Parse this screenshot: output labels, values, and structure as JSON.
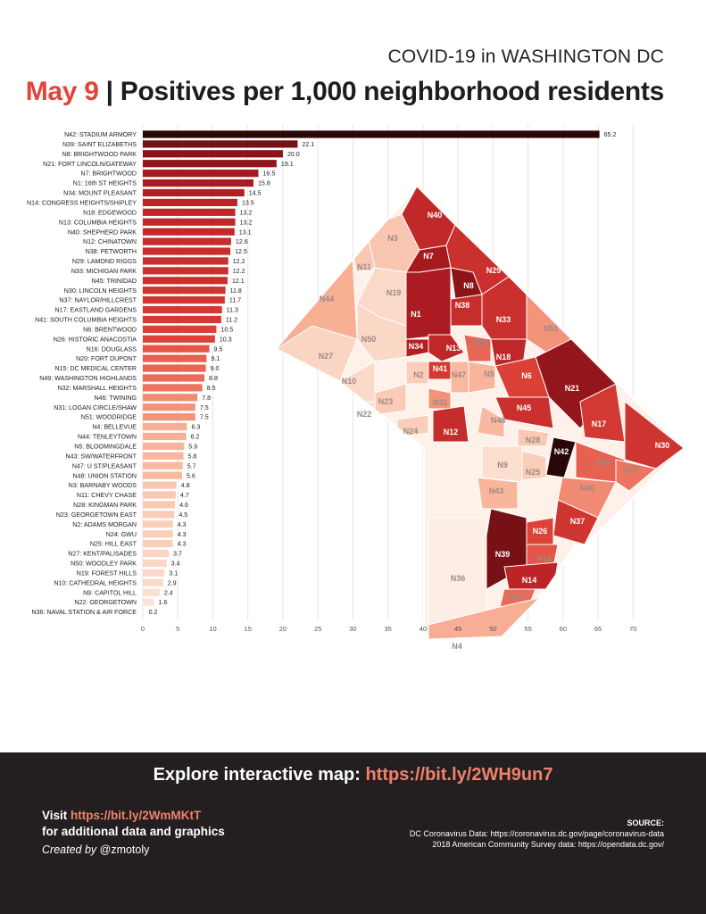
{
  "header": {
    "subtitle": "COVID-19 in WASHINGTON DC",
    "date": "May 9",
    "title_rest": " | Positives per 1,000 neighborhood residents"
  },
  "footer": {
    "explore_text": "Explore interactive map: ",
    "explore_link": "https://bit.ly/2WH9un7",
    "visit_text": "Visit ",
    "visit_link": "https://bit.ly/2WmMKtT",
    "visit_rest": "for additional data and graphics",
    "created_prefix": "Created by",
    "created_handle": " @zmotoly",
    "source_title": "SOURCE:",
    "source_line1": "DC Coronavirus Data: https://coronavirus.dc.gov/page/coronavirus-data",
    "source_line2": "2018 American Community Survey data: https://opendata.dc.gov/"
  },
  "colors": {
    "bar_max": "#2a0707",
    "bar_high": "#8b1419",
    "bar_mid": "#e0453a",
    "bar_low": "#f7a386",
    "bar_min": "#fdeee6",
    "grid": "#e4e4e4",
    "accent": "#e0453a",
    "footer_bg": "#231f20",
    "link": "#f0826a"
  },
  "chart_data": {
    "type": "bar",
    "orientation": "horizontal",
    "xlim": [
      0,
      72
    ],
    "xticks": [
      0,
      5,
      10,
      15,
      20,
      25,
      30,
      35,
      40,
      45,
      50,
      55,
      60,
      65,
      70
    ],
    "grid": true,
    "categories": [
      "N42: STADIUM ARMORY",
      "N39: SAINT ELIZABETHS",
      "N8: BRIGHTWOOD PARK",
      "N21: FORT LINCOLN/GATEWAY",
      "N7: BRIGHTWOOD",
      "N1: 16th ST HEIGHTS",
      "N34: MOUNT PLEASANT",
      "N14: CONGRESS HEIGHTS/SHIPLEY",
      "N18: EDGEWOOD",
      "N13: COLUMBIA HEIGHTS",
      "N40: SHEPHERD PARK",
      "N12: CHINATOWN",
      "N38: PETWORTH",
      "N29: LAMOND RIGGS",
      "N33: MICHIGAN PARK",
      "N45: TRINIDAD",
      "N30: LINCOLN HEIGHTS",
      "N37: NAYLOR/HILLCREST",
      "N17: EASTLAND GARDENS",
      "N41: SOUTH COLUMBIA HEIGHTS",
      "N6: BRENTWOOD",
      "N26: HISTORIC ANACOSTIA",
      "N16: DOUGLASS",
      "N20: FORT DUPONT",
      "N15: DC MEDICAL CENTER",
      "N49: WASHINGTON HIGHLANDS",
      "N32: MARSHALL HEIGHTS",
      "N46: TWINING",
      "N31: LOGAN CIRCLE/SHAW",
      "N51: WOODRIDGE",
      "N4: BELLEVUE",
      "N44: TENLEYTOWN",
      "N5: BLOOMINGDALE",
      "N43: SW/WATERFRONT",
      "N47: U ST/PLEASANT",
      "N48: UNION STATION",
      "N3: BARNABY WOODS",
      "N11: CHEVY CHASE",
      "N28: KINGMAN PARK",
      "N23: GEORGETOWN EAST",
      "N2: ADAMS MORGAN",
      "N24: GWU",
      "N25: HILL EAST",
      "N27: KENT/PALISADES",
      "N50: WOODLEY PARK",
      "N19: FOREST HILLS",
      "N10: CATHEDRAL HEIGHTS",
      "N9: CAPITOL HILL",
      "N22: GEORGETOWN",
      "N36: NAVAL STATION & AIR FORCE"
    ],
    "values": [
      65.2,
      22.1,
      20.0,
      19.1,
      16.5,
      15.8,
      14.5,
      13.5,
      13.2,
      13.2,
      13.1,
      12.6,
      12.5,
      12.2,
      12.2,
      12.1,
      11.8,
      11.7,
      11.3,
      11.2,
      10.5,
      10.3,
      9.5,
      9.1,
      9.0,
      8.8,
      8.5,
      7.8,
      7.5,
      7.5,
      6.3,
      6.2,
      5.9,
      5.8,
      5.7,
      5.6,
      4.8,
      4.7,
      4.6,
      4.5,
      4.3,
      4.3,
      4.3,
      3.7,
      3.4,
      3.1,
      2.9,
      2.4,
      1.6,
      0.2
    ],
    "value_labels": [
      "65.2",
      "22.1",
      "20.0",
      "19.1",
      "16.5",
      "15.8",
      "14.5",
      "13.5",
      "13.2",
      "13.2",
      "13.1",
      "12.6",
      "12.5",
      "12.2",
      "12.2",
      "12.1",
      "11.8",
      "11.7",
      "11.3",
      "11.2",
      "10.5",
      "10.3",
      "9.5",
      "9.1",
      "9.0",
      "8.8",
      "8.5",
      "7.8",
      "7.5",
      "7.5",
      "6.3",
      "6.2",
      "5.9",
      "5.8",
      "5.7",
      "5.6",
      "4.8",
      "4.7",
      "4.6",
      "4.5",
      "4.3",
      "4.3",
      "4.3",
      "3.7",
      "3.4",
      "3.1",
      "2.9",
      "2.4",
      "1.6",
      "0.2"
    ]
  },
  "map_data": {
    "type": "choropleth",
    "labels": [
      {
        "id": "N40",
        "v": 13.1
      },
      {
        "id": "N3",
        "v": 4.8
      },
      {
        "id": "N7",
        "v": 16.5
      },
      {
        "id": "N29",
        "v": 12.2
      },
      {
        "id": "N11",
        "v": 4.7
      },
      {
        "id": "N8",
        "v": 20.0
      },
      {
        "id": "N44",
        "v": 6.2
      },
      {
        "id": "N19",
        "v": 3.1
      },
      {
        "id": "N38",
        "v": 12.5
      },
      {
        "id": "N1",
        "v": 15.8
      },
      {
        "id": "N33",
        "v": 12.2
      },
      {
        "id": "N51",
        "v": 7.5
      },
      {
        "id": "N50",
        "v": 3.4
      },
      {
        "id": "N34",
        "v": 14.5
      },
      {
        "id": "N13",
        "v": 13.2
      },
      {
        "id": "N15",
        "v": 9.0
      },
      {
        "id": "N27",
        "v": 3.7
      },
      {
        "id": "N18",
        "v": 13.2
      },
      {
        "id": "N41",
        "v": 11.2
      },
      {
        "id": "N6",
        "v": 10.5
      },
      {
        "id": "N2",
        "v": 4.3
      },
      {
        "id": "N47",
        "v": 5.7
      },
      {
        "id": "N5",
        "v": 5.9
      },
      {
        "id": "N21",
        "v": 19.1
      },
      {
        "id": "N10",
        "v": 2.9
      },
      {
        "id": "N23",
        "v": 4.5
      },
      {
        "id": "N31",
        "v": 7.5
      },
      {
        "id": "N22",
        "v": 1.6
      },
      {
        "id": "N45",
        "v": 12.1
      },
      {
        "id": "N17",
        "v": 11.3
      },
      {
        "id": "N48",
        "v": 5.6
      },
      {
        "id": "N24",
        "v": 4.3
      },
      {
        "id": "N12",
        "v": 12.6
      },
      {
        "id": "N28",
        "v": 4.6
      },
      {
        "id": "N30",
        "v": 11.8
      },
      {
        "id": "N42",
        "v": 65.2
      },
      {
        "id": "N20",
        "v": 9.1
      },
      {
        "id": "N9",
        "v": 2.4
      },
      {
        "id": "N25",
        "v": 4.3
      },
      {
        "id": "N32",
        "v": 8.5
      },
      {
        "id": "N43",
        "v": 5.8
      },
      {
        "id": "N46",
        "v": 7.8
      },
      {
        "id": "N37",
        "v": 11.7
      },
      {
        "id": "N26",
        "v": 10.3
      },
      {
        "id": "N16",
        "v": 9.5
      },
      {
        "id": "N36",
        "v": 0.2
      },
      {
        "id": "N39",
        "v": 22.1
      },
      {
        "id": "N14",
        "v": 13.5
      },
      {
        "id": "N49",
        "v": 8.8
      },
      {
        "id": "N4",
        "v": 6.3
      }
    ]
  }
}
